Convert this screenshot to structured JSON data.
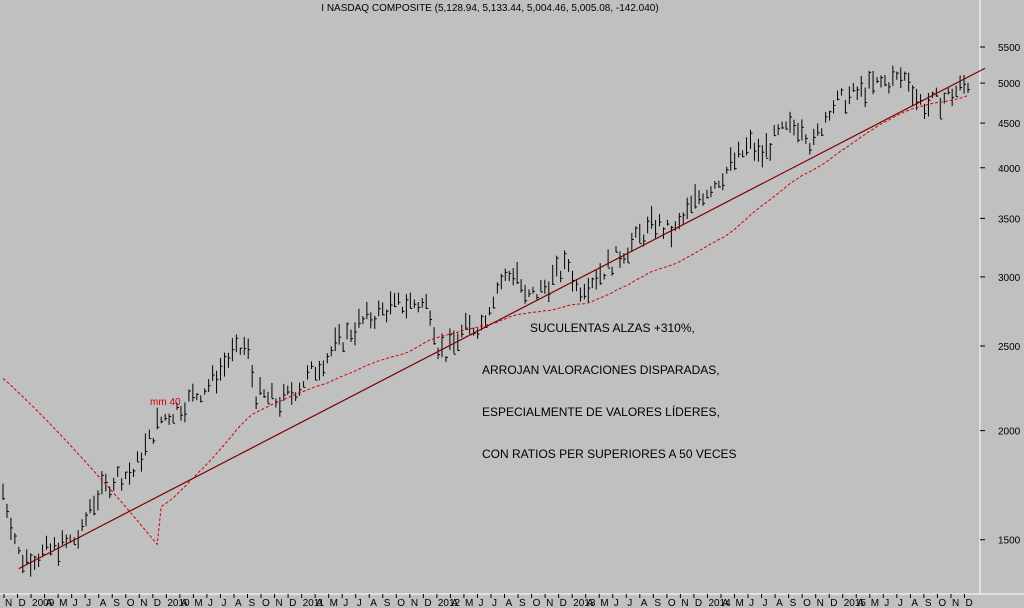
{
  "chart_data": {
    "type": "bar",
    "title": "I NASDAQ COMPOSITE (5,128.94, 5,133.44, 5,004.46, 5,005.08, -142.040)",
    "y_scale": "log",
    "ylim": [
      1300,
      6000
    ],
    "y_ticks": [
      1500,
      2000,
      2500,
      3000,
      3500,
      4000,
      4500,
      5000,
      5500
    ],
    "y_tick_labels": [
      "1500",
      "2000",
      "2500",
      "3000",
      "3500",
      "4000",
      "4500",
      "5000",
      "5500"
    ],
    "x_tick_labels": [
      "N",
      "D",
      "2009",
      "A",
      "M",
      "J",
      "J",
      "A",
      "S",
      "O",
      "N",
      "D",
      "2010",
      "A",
      "M",
      "J",
      "J",
      "A",
      "S",
      "O",
      "N",
      "D",
      "2011",
      "A",
      "M",
      "J",
      "J",
      "A",
      "S",
      "O",
      "N",
      "D",
      "2012",
      "A",
      "M",
      "J",
      "J",
      "A",
      "S",
      "O",
      "N",
      "D",
      "2013",
      "A",
      "M",
      "J",
      "J",
      "A",
      "S",
      "O",
      "N",
      "D",
      "2014",
      "A",
      "M",
      "J",
      "J",
      "A",
      "S",
      "O",
      "N",
      "D",
      "2015",
      "A",
      "M",
      "J",
      "J",
      "A",
      "S",
      "O",
      "N",
      "D"
    ],
    "price_anchors": [
      [
        0,
        1700
      ],
      [
        2,
        1420
      ],
      [
        5,
        1450
      ],
      [
        9,
        1510
      ],
      [
        10,
        1640
      ],
      [
        13,
        1770
      ],
      [
        15,
        1790
      ],
      [
        18,
        2050
      ],
      [
        21,
        2150
      ],
      [
        24,
        2270
      ],
      [
        26,
        2420
      ],
      [
        28,
        2500
      ],
      [
        29,
        2200
      ],
      [
        32,
        2150
      ],
      [
        35,
        2300
      ],
      [
        38,
        2480
      ],
      [
        41,
        2650
      ],
      [
        44,
        2750
      ],
      [
        47,
        2800
      ],
      [
        49,
        2780
      ],
      [
        50,
        2500
      ],
      [
        51,
        2450
      ],
      [
        53,
        2600
      ],
      [
        55,
        2650
      ],
      [
        57,
        2950
      ],
      [
        59,
        3050
      ],
      [
        60,
        2820
      ],
      [
        62,
        2900
      ],
      [
        65,
        3100
      ],
      [
        66,
        2900
      ],
      [
        69,
        3050
      ],
      [
        72,
        3250
      ],
      [
        75,
        3450
      ],
      [
        77,
        3350
      ],
      [
        80,
        3700
      ],
      [
        83,
        3950
      ],
      [
        86,
        4250
      ],
      [
        87,
        4100
      ],
      [
        89,
        4350
      ],
      [
        92,
        4500
      ],
      [
        93,
        4200
      ],
      [
        95,
        4700
      ],
      [
        98,
        4850
      ],
      [
        101,
        5000
      ],
      [
        104,
        5080
      ],
      [
        105,
        4800
      ],
      [
        106,
        4700
      ],
      [
        107,
        4750
      ],
      [
        109,
        4850
      ],
      [
        111,
        5005
      ]
    ],
    "moving_average_label": "mm 40",
    "moving_average_color": "#d00000",
    "price_color": "#000000",
    "trendline_color": "#800000",
    "trendline_endpoints": [
      [
        2,
        1390
      ],
      [
        111,
        5200
      ]
    ],
    "grid": false,
    "annotation": [
      "SUCULENTAS ALZAS +310%,",
      "ARROJAN VALORACIONES DISPARADAS,",
      "ESPECIALMENTE DE VALORES LÍDERES,",
      "CON RATIOS PER SUPERIORES A 50 VECES"
    ]
  }
}
